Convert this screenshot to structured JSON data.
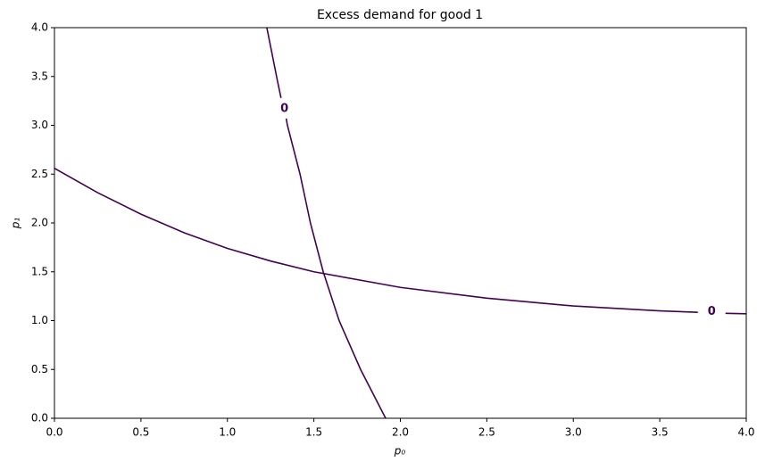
{
  "chart_data": {
    "type": "contour",
    "title": "Excess demand for good 1",
    "xlabel": "p₀",
    "ylabel": "p₁",
    "xlim": [
      0,
      4
    ],
    "ylim": [
      0,
      4
    ],
    "xticks": [
      {
        "value": 0,
        "label": "0.0"
      },
      0.5,
      {
        "value": 1,
        "label": "1.0"
      },
      1.5,
      {
        "value": 2,
        "label": "2.0"
      },
      2.5,
      {
        "value": 3,
        "label": "3.0"
      },
      3.5,
      {
        "value": 4,
        "label": "4.0"
      }
    ],
    "yticks": [
      {
        "value": 0,
        "label": "0.0"
      },
      0.5,
      {
        "value": 1,
        "label": "1.0"
      },
      1.5,
      {
        "value": 2,
        "label": "2.0"
      },
      2.5,
      {
        "value": 3,
        "label": "3.0"
      },
      3.5,
      {
        "value": 4,
        "label": "4.0"
      }
    ],
    "contours": [
      {
        "level": 0,
        "color": "#440154",
        "x": [
          1.228,
          1.29,
          1.31,
          null,
          1.34,
          1.347,
          1.42,
          1.48,
          1.554,
          1.646,
          1.77,
          1.915
        ],
        "y": [
          4.0,
          3.45,
          3.28,
          null,
          3.07,
          3.0,
          2.5,
          2.0,
          1.5,
          1.0,
          0.5,
          0.0
        ]
      },
      {
        "level": 0,
        "color": "#440154",
        "x": [
          0,
          0.25,
          0.5,
          0.75,
          1,
          1.25,
          1.5,
          2,
          2.5,
          3,
          3.5,
          3.72,
          null,
          3.88,
          4.0
        ],
        "y": [
          2.56,
          2.31,
          2.09,
          1.9,
          1.74,
          1.61,
          1.5,
          1.34,
          1.23,
          1.15,
          1.1,
          1.085,
          null,
          1.075,
          1.07
        ]
      }
    ],
    "contour_labels": [
      {
        "level": 0,
        "x": 1.33,
        "y": 3.17,
        "color": "#440154"
      },
      {
        "level": 0,
        "x": 3.8,
        "y": 1.09,
        "color": "#440154"
      }
    ]
  }
}
